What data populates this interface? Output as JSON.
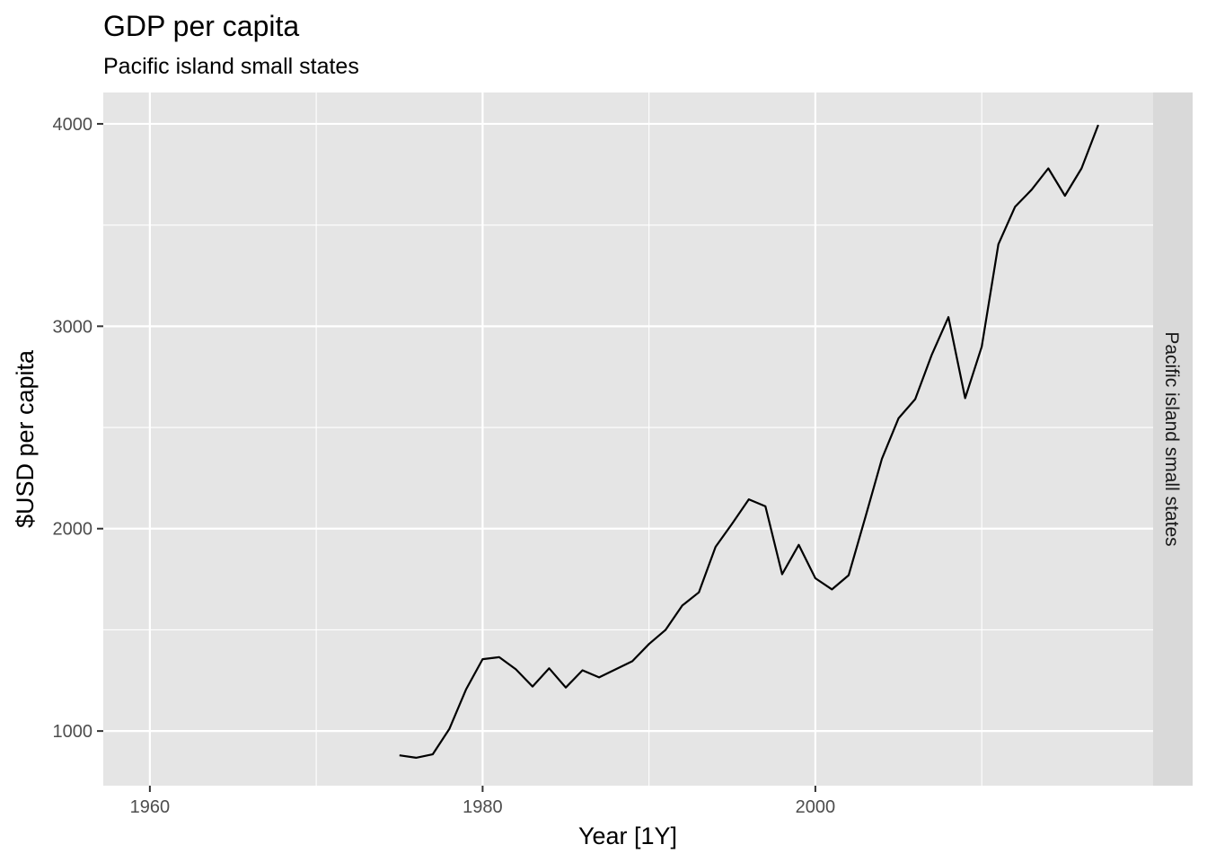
{
  "chart_data": {
    "type": "line",
    "title": "GDP per capita",
    "subtitle": "Pacific island small states",
    "xlabel": "Year [1Y]",
    "ylabel": "$USD per capita",
    "facet_label": "Pacific island small states",
    "xlim": [
      1957.2,
      2020.3
    ],
    "ylim": [
      730,
      4155
    ],
    "x_ticks": [
      1960,
      1980,
      2000
    ],
    "x_tick_labels": [
      "1960",
      "1980",
      "2000"
    ],
    "x_minor_ticks": [
      1970,
      1990,
      2010
    ],
    "y_ticks": [
      1000,
      2000,
      3000,
      4000
    ],
    "y_tick_labels": [
      "1000",
      "2000",
      "3000",
      "4000"
    ],
    "y_minor_ticks": [
      1500,
      2500,
      3500
    ],
    "grid": true,
    "panel_background": "#e5e5e5",
    "strip_background": "#d9d9d9",
    "line_color": "#000000",
    "series": [
      {
        "x": [
          1975,
          1976,
          1977,
          1978,
          1979,
          1980,
          1981,
          1982,
          1983,
          1984,
          1985,
          1986,
          1987,
          1988,
          1989,
          1990,
          1991,
          1992,
          1993,
          1994,
          1995,
          1996,
          1997,
          1998,
          1999,
          2000,
          2001,
          2002,
          2003,
          2004,
          2005,
          2006,
          2007,
          2008,
          2009,
          2010,
          2011,
          2012,
          2013,
          2014,
          2015,
          2016,
          2017
        ],
        "values": [
          880,
          868,
          885,
          1010,
          1205,
          1355,
          1365,
          1305,
          1220,
          1310,
          1215,
          1300,
          1265,
          1305,
          1345,
          1430,
          1500,
          1620,
          1685,
          1910,
          2025,
          2145,
          2110,
          1775,
          1920,
          1755,
          1700,
          1770,
          2055,
          2345,
          2545,
          2640,
          2860,
          3045,
          2645,
          2900,
          3405,
          3590,
          3675,
          3780,
          3645,
          3780,
          3995
        ]
      }
    ]
  }
}
